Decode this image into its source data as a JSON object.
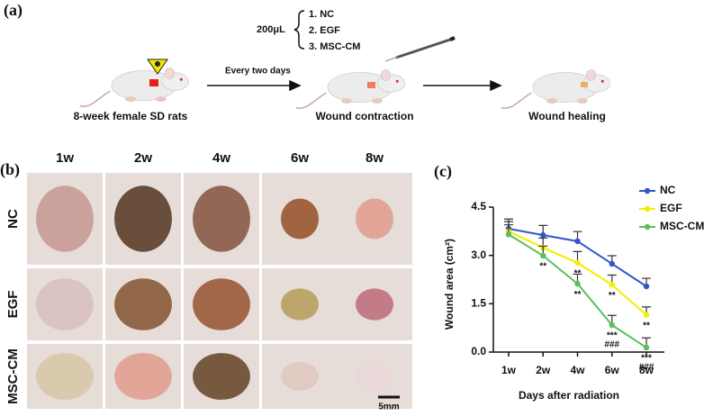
{
  "panel_a": {
    "label": "(a)",
    "volume": "200μL",
    "treatments": [
      "1. NC",
      "2. EGF",
      "3. MSC-CM"
    ],
    "interval": "Every two days",
    "steps": [
      "8-week female SD rats",
      "Wound contraction",
      "Wound healing"
    ]
  },
  "panel_b": {
    "label": "(b)",
    "columns": [
      "1w",
      "2w",
      "4w",
      "6w",
      "8w"
    ],
    "rows": [
      "NC",
      "EGF",
      "MSC-CM"
    ],
    "scale_bar": "5mm"
  },
  "chart_data": {
    "type": "line",
    "panel_label": "(c)",
    "categories": [
      "1w",
      "2w",
      "4w",
      "6w",
      "8w"
    ],
    "series": [
      {
        "name": "NC",
        "color": "#3355cc",
        "values": [
          3.83,
          3.63,
          3.44,
          2.74,
          2.04
        ],
        "errors": [
          0.3,
          0.3,
          0.3,
          0.25,
          0.25
        ]
      },
      {
        "name": "EGF",
        "color": "#f0f000",
        "values": [
          3.75,
          3.24,
          2.77,
          2.09,
          1.15
        ],
        "errors": [
          0.3,
          0.3,
          0.35,
          0.3,
          0.25
        ],
        "annotations": [
          null,
          null,
          "**",
          "**",
          "**"
        ]
      },
      {
        "name": "MSC-CM",
        "color": "#5cbf5c",
        "values": [
          3.65,
          2.99,
          2.12,
          0.84,
          0.14
        ],
        "errors": [
          0.3,
          0.3,
          0.3,
          0.3,
          0.3
        ],
        "annotations": [
          null,
          "**",
          "**",
          "***",
          "***"
        ],
        "annotations2": [
          null,
          null,
          null,
          "###",
          "###"
        ]
      }
    ],
    "ylim": [
      0,
      4.5
    ],
    "yticks": [
      {
        "value": 0,
        "label": "0.0"
      },
      1.5,
      {
        "value": 3,
        "label": "3.0"
      },
      4.5
    ],
    "ylabel": "Wound area (cm²)",
    "xlabel": "Days after radiation",
    "legend": "upper right"
  }
}
